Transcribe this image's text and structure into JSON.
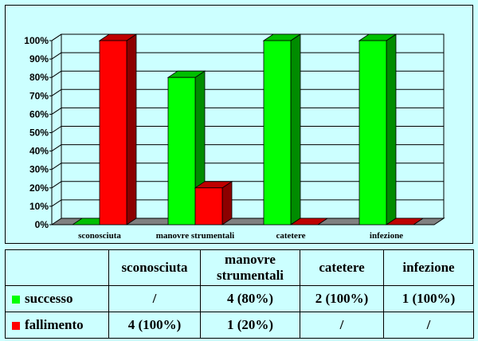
{
  "colors": {
    "successo": "#00ff00",
    "fallimento": "#ff0000",
    "background": "#ccffff"
  },
  "chart_data": {
    "type": "bar",
    "categories": [
      "sconosciuta",
      "manovre strumentali",
      "catetere",
      "infezione"
    ],
    "series": [
      {
        "name": "successo",
        "values": [
          0,
          80,
          100,
          100
        ]
      },
      {
        "name": "fallimento",
        "values": [
          100,
          20,
          0,
          0
        ]
      }
    ],
    "ylim": [
      0,
      100
    ],
    "yticks": [
      "0%",
      "10%",
      "20%",
      "30%",
      "40%",
      "50%",
      "60%",
      "70%",
      "80%",
      "90%",
      "100%"
    ],
    "grid": true,
    "three_d": true
  },
  "table": {
    "headers": [
      "sconosciuta",
      "manovre strumentali",
      "catetere",
      "infezione"
    ],
    "rows": [
      {
        "label": "successo",
        "swatch": "successo",
        "cells": [
          "/",
          "4 (80%)",
          "2 (100%)",
          "1 (100%)"
        ]
      },
      {
        "label": "fallimento",
        "swatch": "fallimento",
        "cells": [
          "4 (100%)",
          "1 (20%)",
          "/",
          "/"
        ]
      }
    ]
  }
}
